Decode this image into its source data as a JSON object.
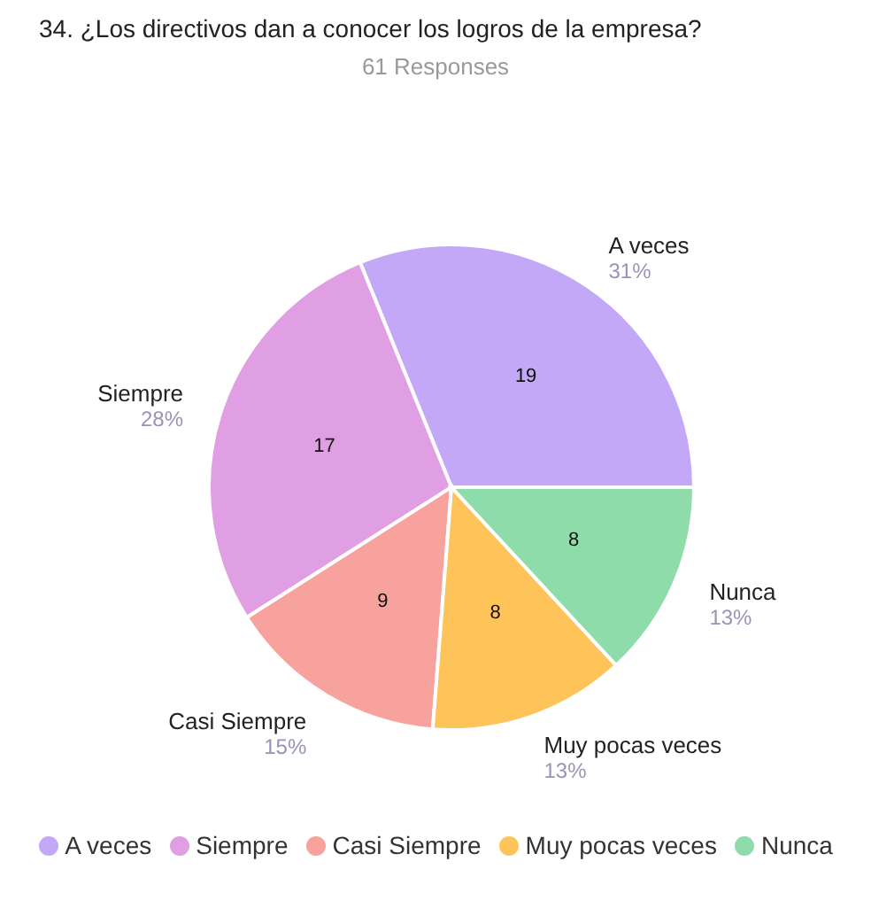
{
  "chart_data": {
    "type": "pie",
    "title": "34.   ¿Los directivos dan a conocer los logros de la empresa?",
    "subtitle": "61 Responses",
    "categories": [
      "A veces",
      "Siempre",
      "Casi Siempre",
      "Muy pocas veces",
      "Nunca"
    ],
    "values": [
      19,
      17,
      9,
      8,
      8
    ],
    "colors": [
      "#c4a8f8",
      "#e09fe3",
      "#f8a29e",
      "#fec45a",
      "#8fdcab"
    ],
    "annotations": [
      {
        "text": "31%",
        "x": "A veces"
      },
      {
        "text": "28%",
        "x": "Siempre"
      },
      {
        "text": "15%",
        "x": "Casi Siempre"
      },
      {
        "text": "13%",
        "x": "Muy pocas veces"
      },
      {
        "text": "13%",
        "x": "Nunca"
      }
    ],
    "data_labels": true,
    "legend": "bottom"
  }
}
